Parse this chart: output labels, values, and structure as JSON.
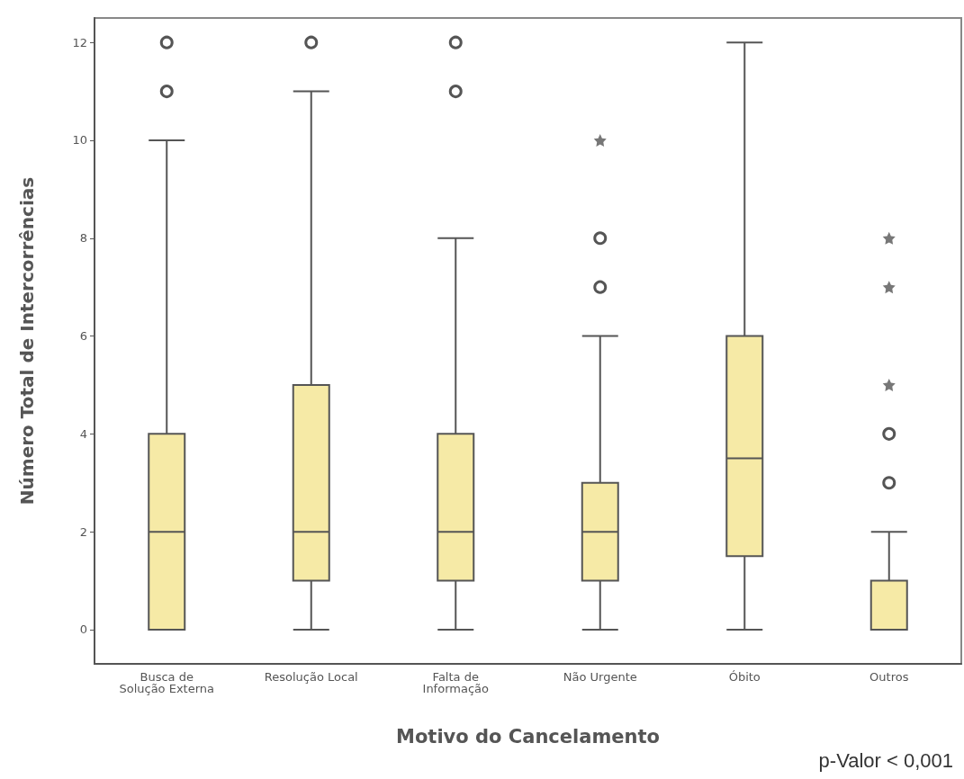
{
  "chart_data": {
    "type": "box",
    "xlabel": "Motivo do Cancelamento",
    "ylabel": "Número Total de Intercorrências",
    "annotations": [
      "p-Valor < 0,001"
    ],
    "categories": [
      "Busca de\nSolução Externa",
      "Resolução Local",
      "Falta de\nInformação",
      "Não Urgente",
      "Óbito",
      "Outros"
    ],
    "ylim": [
      -0.7,
      12.5
    ],
    "yticks": [
      0,
      2,
      4,
      6,
      8,
      10,
      12
    ],
    "grid": false,
    "series": [
      {
        "color": "#f6eaa6",
        "boxes": [
          {
            "low": 0,
            "q1": 0,
            "median": 2,
            "q3": 4,
            "high": 10,
            "outliers": [
              11,
              12
            ]
          },
          {
            "low": 0,
            "q1": 1,
            "median": 2,
            "q3": 5,
            "high": 11,
            "outliers": [
              12
            ]
          },
          {
            "low": 0,
            "q1": 1,
            "median": 2,
            "q3": 4,
            "high": 8,
            "outliers": [
              11,
              12
            ]
          },
          {
            "low": 0,
            "q1": 1,
            "median": 2,
            "q3": 3,
            "high": 6,
            "outliers": [
              7,
              8
            ]
          },
          {
            "low": 0,
            "q1": 1.5,
            "median": 3.5,
            "q3": 6,
            "high": 12
          },
          {
            "low": 0,
            "q1": 0,
            "median": 1,
            "q3": 1,
            "high": 2,
            "outliers": [
              3,
              4
            ]
          }
        ]
      },
      {
        "type": "scatter",
        "marker": "star",
        "color": "#555555",
        "x": [
          "Não Urgente",
          "Outros",
          "Outros",
          "Outros"
        ],
        "values": [
          10,
          5,
          7,
          8
        ]
      }
    ]
  }
}
